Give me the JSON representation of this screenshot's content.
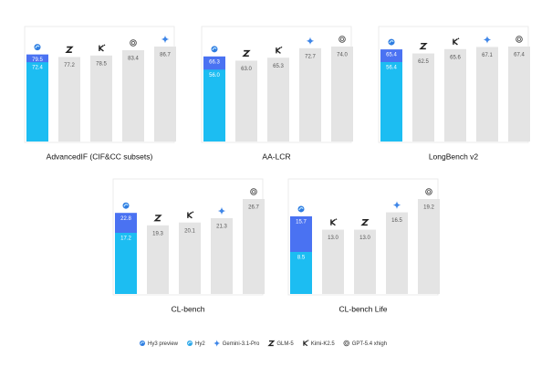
{
  "legend": [
    {
      "name": "Hy3 preview",
      "color": "#4a72f2"
    },
    {
      "name": "Hy2",
      "color": "#1cbdf2"
    },
    {
      "name": "Gemini-3.1-Pro",
      "color": "#e4e4e4"
    },
    {
      "name": "GLM-5",
      "color": "#e4e4e4"
    },
    {
      "name": "Kimi-K2.5",
      "color": "#e4e4e4"
    },
    {
      "name": "GPT-5.4 xhigh",
      "color": "#e4e4e4"
    }
  ],
  "chart_data": [
    {
      "type": "bar",
      "title": "AdvancedIF (CIF&CC subsets)",
      "series": [
        {
          "name": "Hy3 preview",
          "values": [
            79.5
          ],
          "value_labels": [
            "79.5"
          ]
        },
        {
          "name": "Hy2",
          "values": [
            72.4
          ],
          "value_labels": [
            "72.4"
          ]
        },
        {
          "name": "GLM-5",
          "values": [
            77.2
          ],
          "value_labels": [
            "77.2"
          ]
        },
        {
          "name": "Kimi-K2.5",
          "values": [
            78.5
          ],
          "value_labels": [
            "78.5"
          ]
        },
        {
          "name": "GPT-5.4 xhigh",
          "values": [
            83.4
          ],
          "value_labels": [
            "83.4"
          ]
        },
        {
          "name": "Gemini-3.1-Pro",
          "values": [
            86.7
          ],
          "value_labels": [
            "86.7"
          ]
        }
      ]
    },
    {
      "type": "bar",
      "title": "AA-LCR",
      "series": [
        {
          "name": "Hy3 preview",
          "values": [
            66.3
          ],
          "value_labels": [
            "66.3"
          ]
        },
        {
          "name": "Hy2",
          "values": [
            56
          ],
          "value_labels": [
            "56.0"
          ]
        },
        {
          "name": "GLM-5",
          "values": [
            63
          ],
          "value_labels": [
            "63.0"
          ]
        },
        {
          "name": "Kimi-K2.5",
          "values": [
            65.3
          ],
          "value_labels": [
            "65.3"
          ]
        },
        {
          "name": "Gemini-3.1-Pro",
          "values": [
            72.7
          ],
          "value_labels": [
            "72.7"
          ]
        },
        {
          "name": "GPT-5.4 xhigh",
          "values": [
            74
          ],
          "value_labels": [
            "74.0"
          ]
        }
      ]
    },
    {
      "type": "bar",
      "title": "LongBench v2",
      "series": [
        {
          "name": "Hy3 preview",
          "values": [
            65.4
          ],
          "value_labels": [
            "65.4"
          ]
        },
        {
          "name": "Hy2",
          "values": [
            56.4
          ],
          "value_labels": [
            "56.4"
          ]
        },
        {
          "name": "GLM-5",
          "values": [
            62.5
          ],
          "value_labels": [
            "62.5"
          ]
        },
        {
          "name": "Kimi-K2.5",
          "values": [
            65.6
          ],
          "value_labels": [
            "65.6"
          ]
        },
        {
          "name": "Gemini-3.1-Pro",
          "values": [
            67.1
          ],
          "value_labels": [
            "67.1"
          ]
        },
        {
          "name": "GPT-5.4 xhigh",
          "values": [
            67.4
          ],
          "value_labels": [
            "67.4"
          ]
        }
      ]
    },
    {
      "type": "bar",
      "title": "CL-bench",
      "series": [
        {
          "name": "Hy3 preview",
          "values": [
            22.8
          ],
          "value_labels": [
            "22.8"
          ]
        },
        {
          "name": "Hy2",
          "values": [
            17.2
          ],
          "value_labels": [
            "17.2"
          ]
        },
        {
          "name": "GLM-5",
          "values": [
            19.3
          ],
          "value_labels": [
            "19.3"
          ]
        },
        {
          "name": "Kimi-K2.5",
          "values": [
            20.1
          ],
          "value_labels": [
            "20.1"
          ]
        },
        {
          "name": "Gemini-3.1-Pro",
          "values": [
            21.3
          ],
          "value_labels": [
            "21.3"
          ]
        },
        {
          "name": "GPT-5.4 xhigh",
          "values": [
            26.7
          ],
          "value_labels": [
            "26.7"
          ]
        }
      ]
    },
    {
      "type": "bar",
      "title": "CL-bench Life",
      "series": [
        {
          "name": "Hy3 preview",
          "values": [
            15.7
          ],
          "value_labels": [
            "15.7"
          ]
        },
        {
          "name": "Hy2",
          "values": [
            8.5
          ],
          "value_labels": [
            "8.5"
          ]
        },
        {
          "name": "Kimi-K2.5",
          "values": [
            13
          ],
          "value_labels": [
            "13.0"
          ]
        },
        {
          "name": "GLM-5",
          "values": [
            13
          ],
          "value_labels": [
            "13.0"
          ]
        },
        {
          "name": "Gemini-3.1-Pro",
          "values": [
            16.5
          ],
          "value_labels": [
            "16.5"
          ]
        },
        {
          "name": "GPT-5.4 xhigh",
          "values": [
            19.2
          ],
          "value_labels": [
            "19.2"
          ]
        }
      ]
    }
  ]
}
